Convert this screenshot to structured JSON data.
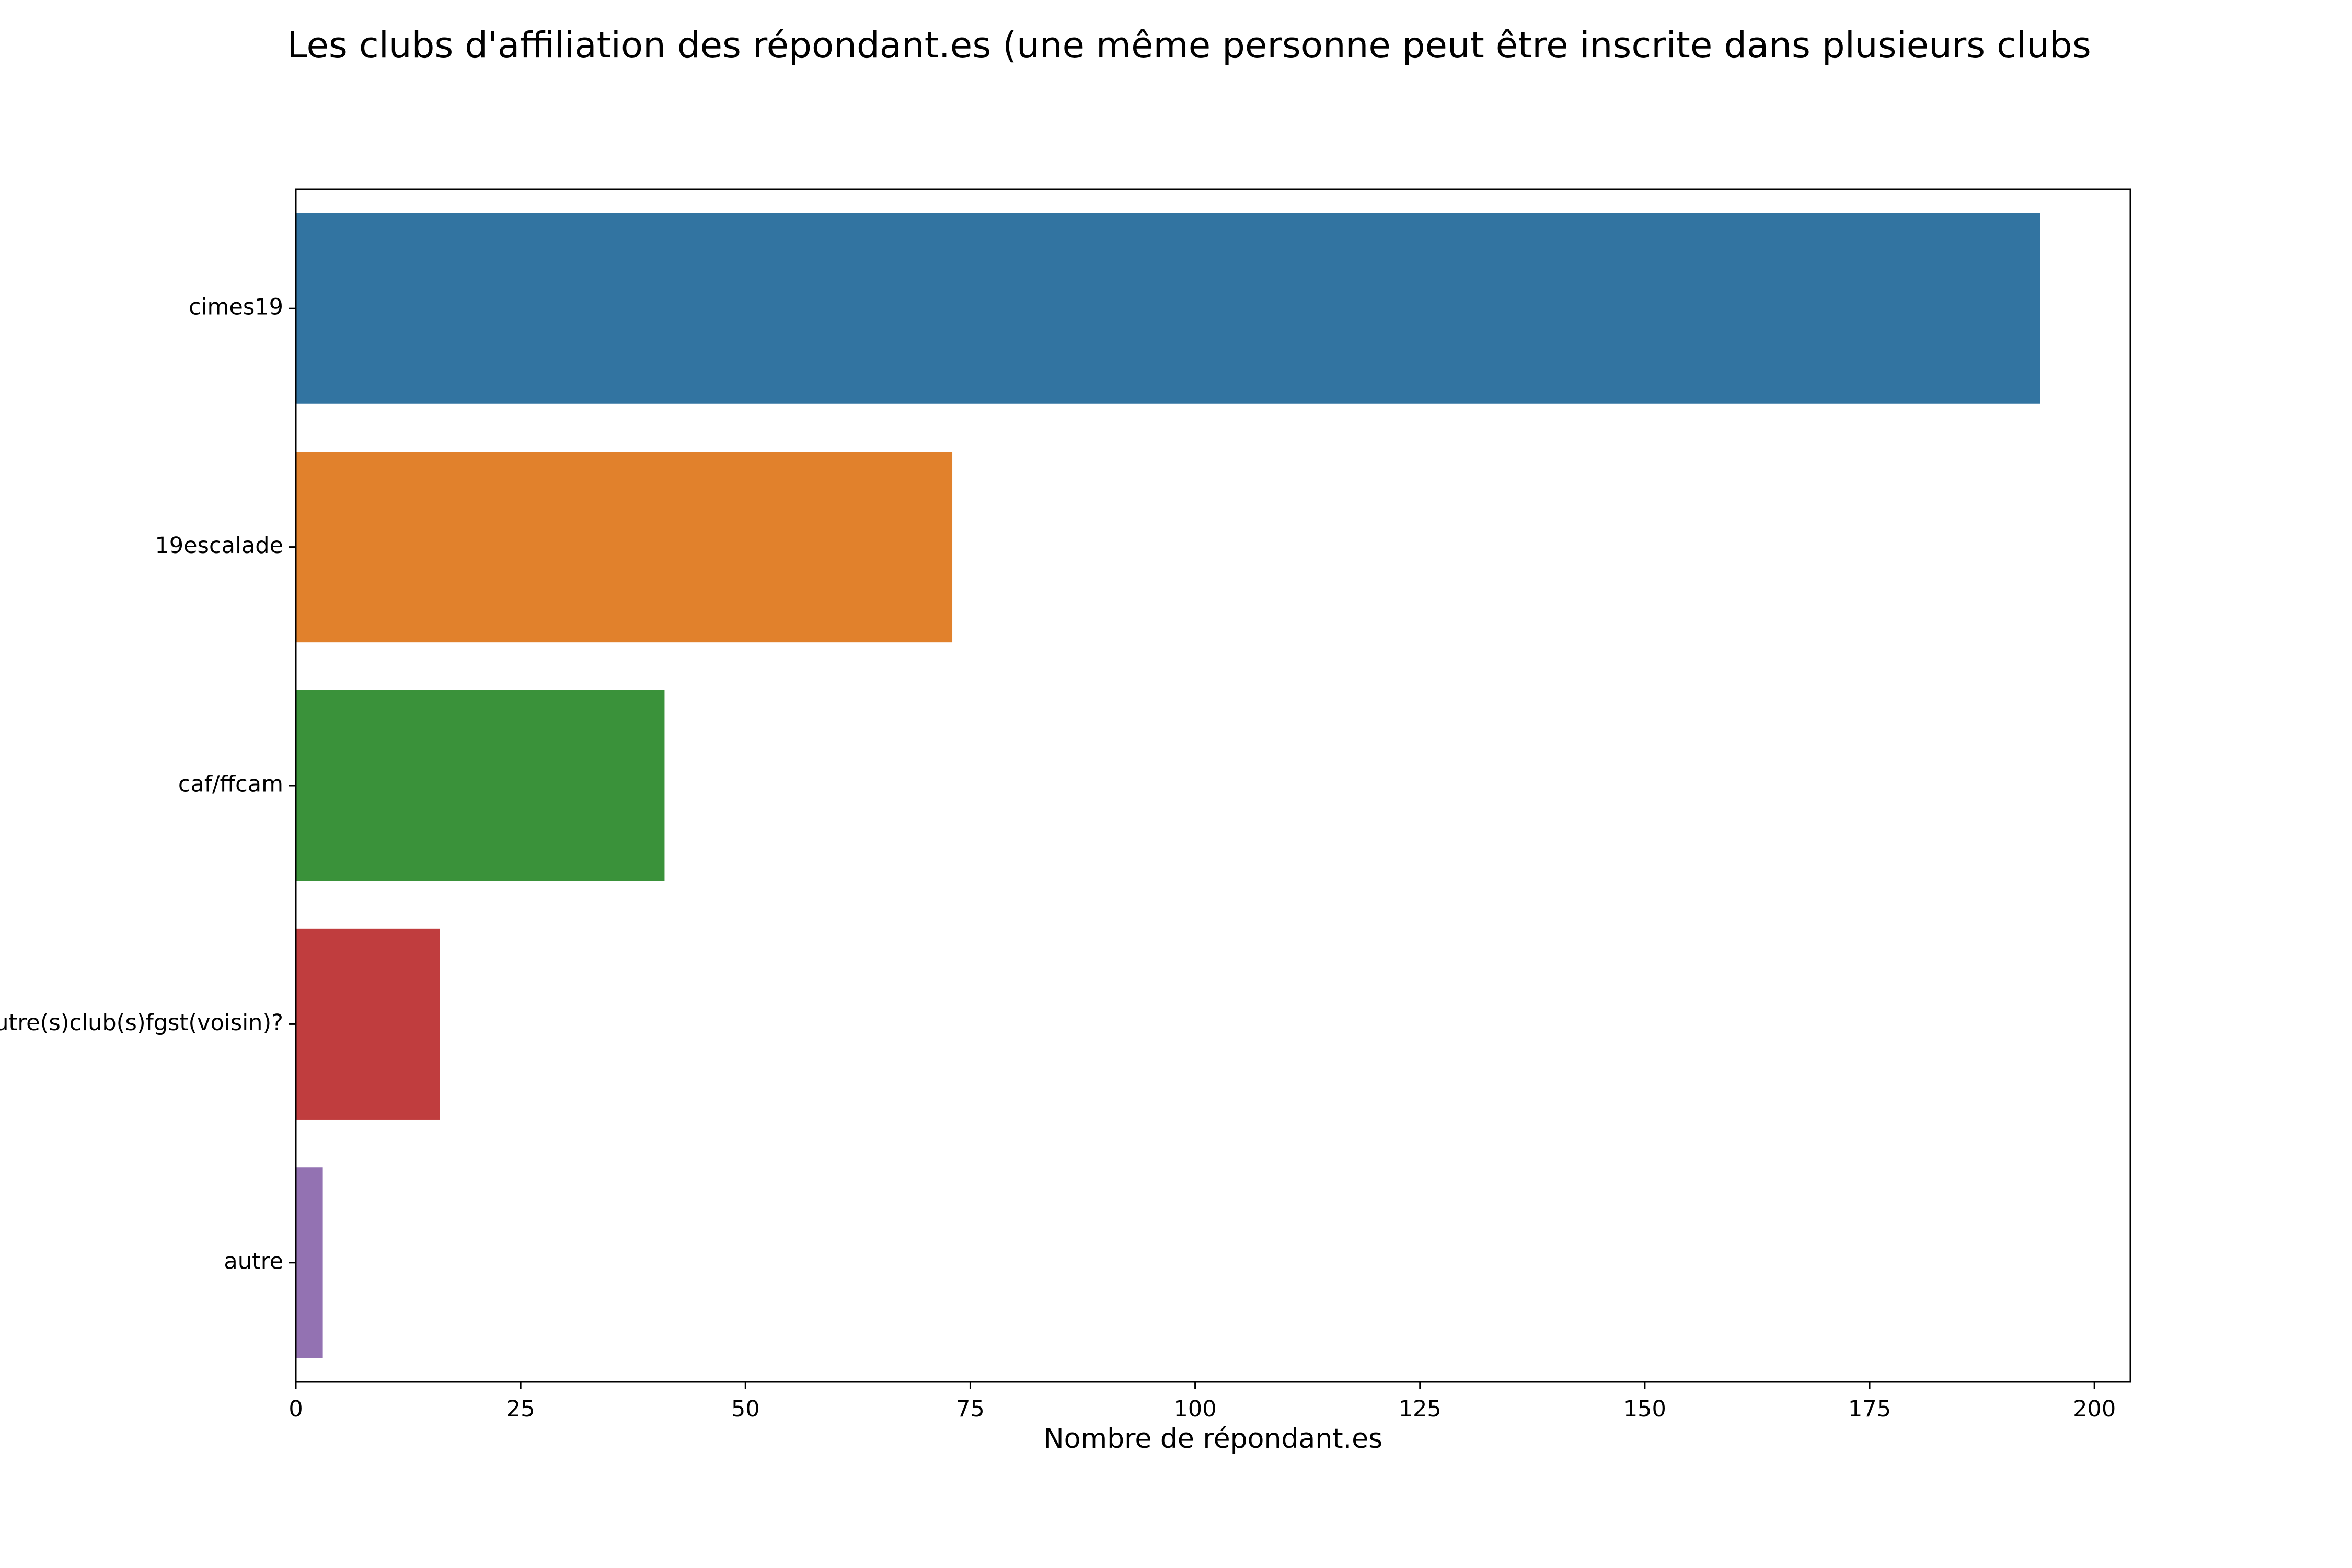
{
  "chart_data": {
    "type": "bar",
    "orientation": "horizontal",
    "title": "Les clubs d'affiliation des répondant.es (une même personne peut être inscrite dans plusieurs clubs",
    "xlabel": "Nombre de répondant.es",
    "ylabel": "",
    "categories": [
      "cimes19",
      "19escalade",
      "caf/ffcam",
      "autre(s)club(s)fgst(voisin)?",
      "autre"
    ],
    "values": [
      194,
      73,
      41,
      16,
      3
    ],
    "colors": [
      "#3274a1",
      "#e1812c",
      "#3a923a",
      "#c03d3e",
      "#9372b2"
    ],
    "xlim": [
      0,
      204
    ],
    "xticks": [
      0,
      25,
      50,
      75,
      100,
      125,
      150,
      175,
      200
    ],
    "grid": false,
    "legend": "none"
  }
}
